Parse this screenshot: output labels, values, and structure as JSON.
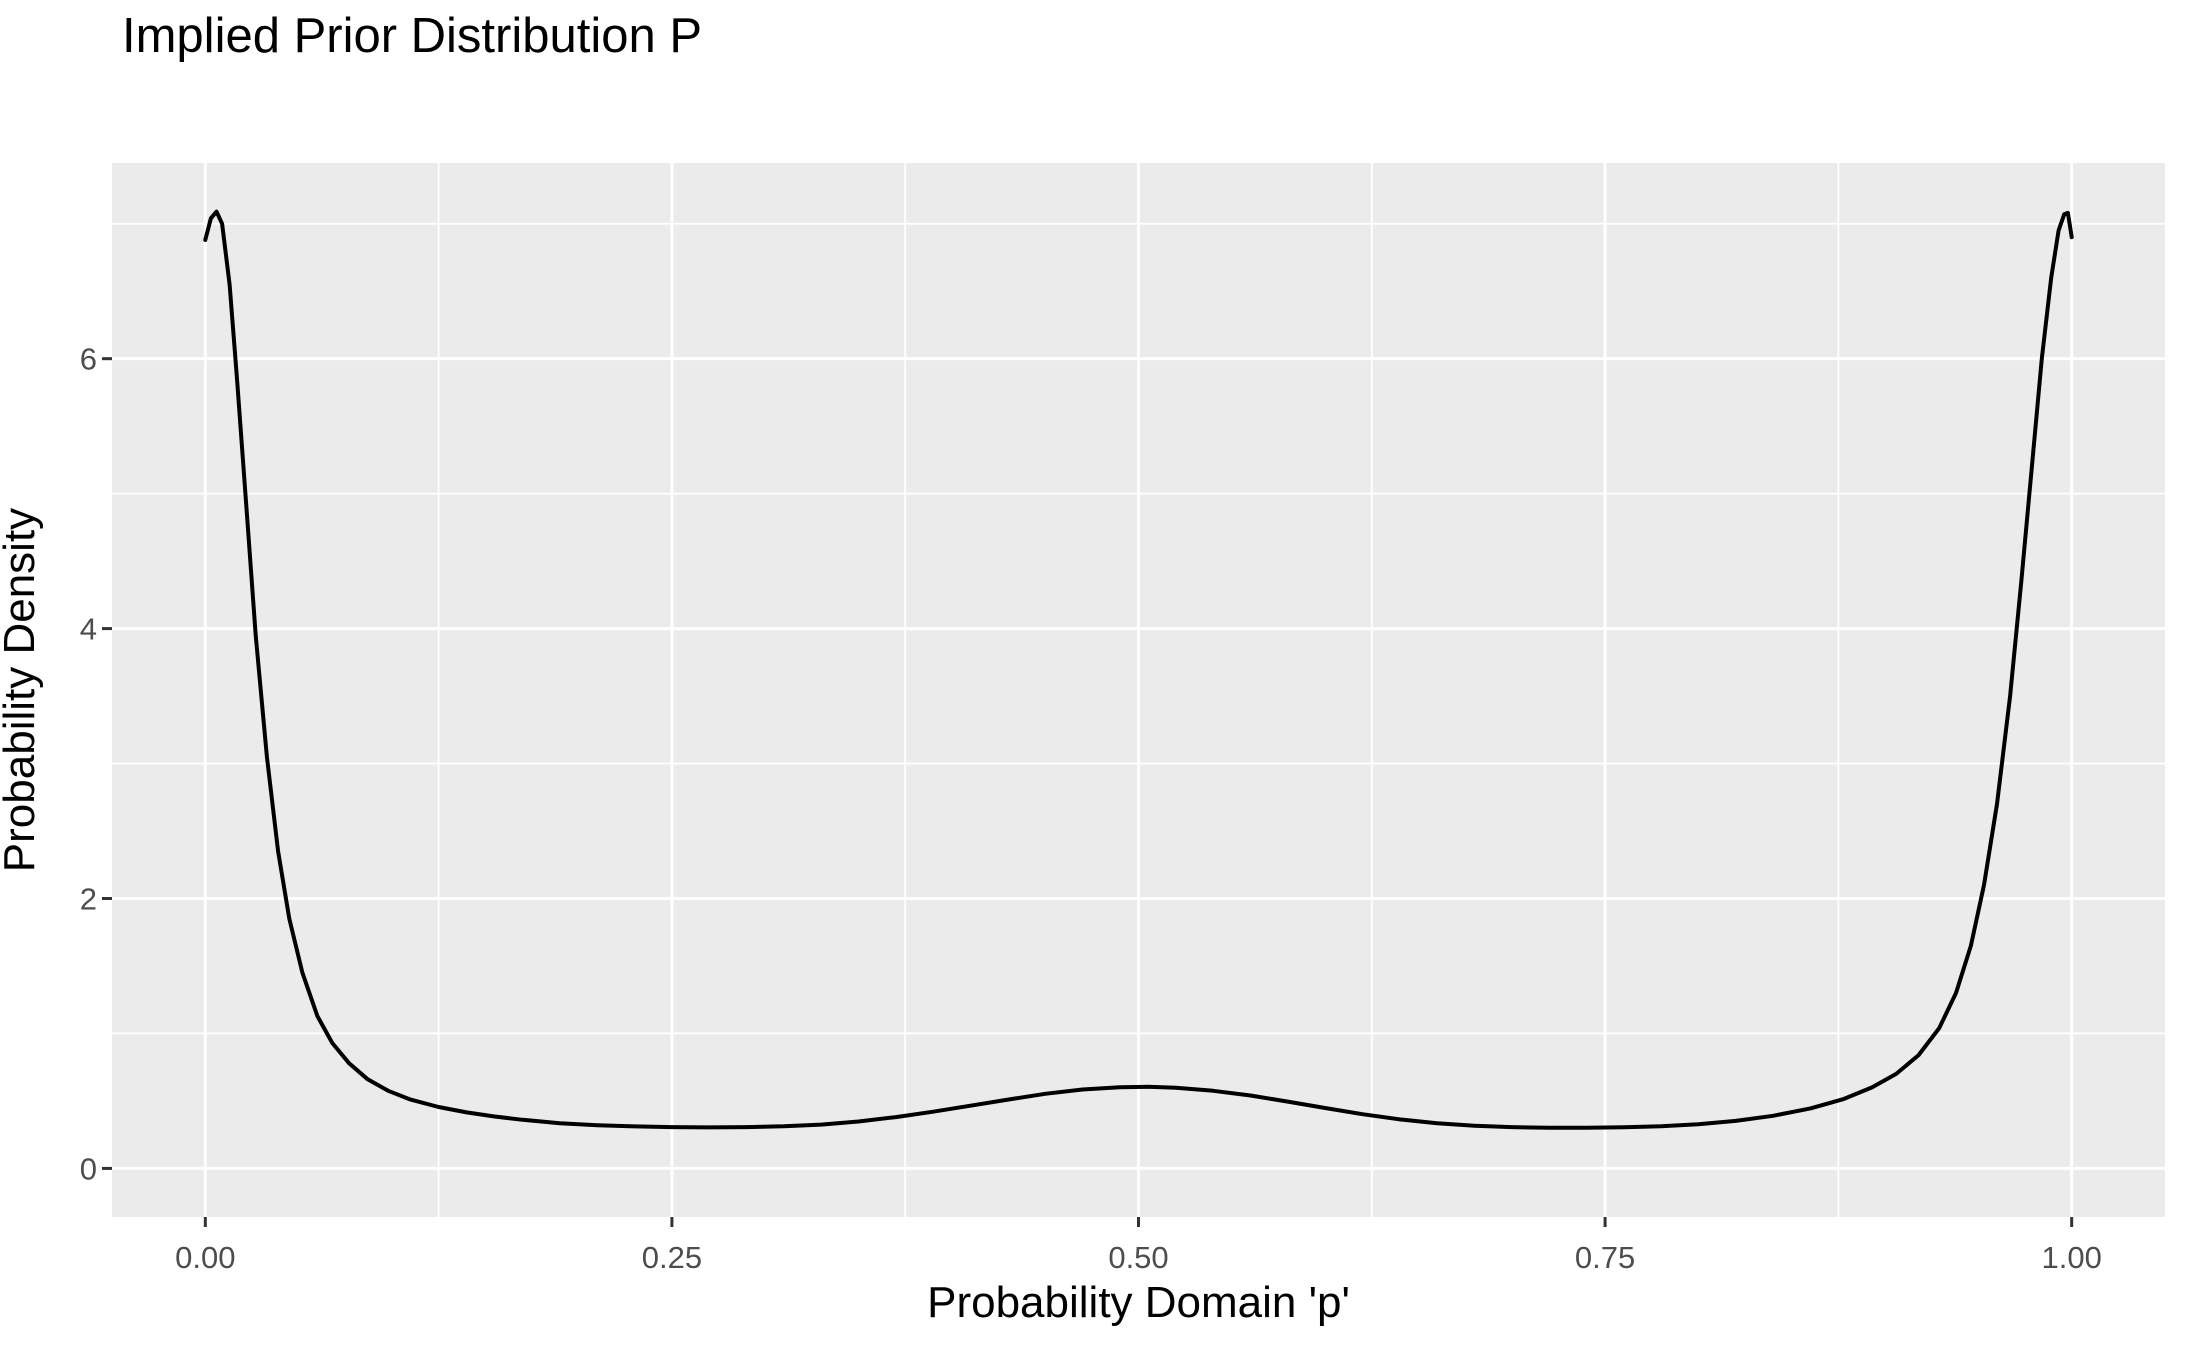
{
  "chart_data": {
    "type": "line",
    "title": "Implied Prior Distribution P",
    "xlabel": "Probability Domain 'p'",
    "ylabel": "Probability Density",
    "legend": "none",
    "grid": "on",
    "panel_color": "#EBEBEB",
    "grid_color": "#FFFFFF",
    "line_color": "#000000",
    "tick_text_color": "#4D4D4D",
    "tick_mark_color": "#333333",
    "xlim": [
      -0.05,
      1.05
    ],
    "ylim": [
      -0.36,
      7.45
    ],
    "x_ticks": [
      0,
      0.25,
      0.5,
      0.75,
      1.0
    ],
    "x_tick_labels": [
      "0.00",
      "0.25",
      "0.50",
      "0.75",
      "1.00"
    ],
    "x_minor_ticks": [
      0.125,
      0.375,
      0.625,
      0.875
    ],
    "y_ticks": [
      0,
      2,
      4,
      6
    ],
    "y_tick_labels": [
      "0",
      "2",
      "4",
      "6"
    ],
    "y_minor_ticks": [
      1,
      3,
      5,
      7
    ],
    "series": [
      {
        "name": "density",
        "points": [
          [
            0.0,
            6.88
          ],
          [
            0.003,
            7.04
          ],
          [
            0.006,
            7.09
          ],
          [
            0.009,
            7.0
          ],
          [
            0.013,
            6.55
          ],
          [
            0.017,
            5.85
          ],
          [
            0.022,
            4.9
          ],
          [
            0.027,
            3.95
          ],
          [
            0.033,
            3.05
          ],
          [
            0.039,
            2.35
          ],
          [
            0.045,
            1.85
          ],
          [
            0.052,
            1.45
          ],
          [
            0.06,
            1.13
          ],
          [
            0.068,
            0.93
          ],
          [
            0.077,
            0.78
          ],
          [
            0.087,
            0.66
          ],
          [
            0.098,
            0.575
          ],
          [
            0.11,
            0.51
          ],
          [
            0.125,
            0.455
          ],
          [
            0.14,
            0.415
          ],
          [
            0.155,
            0.385
          ],
          [
            0.17,
            0.36
          ],
          [
            0.19,
            0.335
          ],
          [
            0.21,
            0.32
          ],
          [
            0.23,
            0.311
          ],
          [
            0.25,
            0.306
          ],
          [
            0.27,
            0.304
          ],
          [
            0.29,
            0.306
          ],
          [
            0.31,
            0.312
          ],
          [
            0.33,
            0.325
          ],
          [
            0.35,
            0.348
          ],
          [
            0.37,
            0.38
          ],
          [
            0.39,
            0.42
          ],
          [
            0.41,
            0.465
          ],
          [
            0.43,
            0.51
          ],
          [
            0.45,
            0.553
          ],
          [
            0.47,
            0.585
          ],
          [
            0.49,
            0.602
          ],
          [
            0.505,
            0.605
          ],
          [
            0.52,
            0.598
          ],
          [
            0.54,
            0.575
          ],
          [
            0.56,
            0.54
          ],
          [
            0.58,
            0.495
          ],
          [
            0.6,
            0.448
          ],
          [
            0.62,
            0.402
          ],
          [
            0.64,
            0.363
          ],
          [
            0.66,
            0.335
          ],
          [
            0.68,
            0.316
          ],
          [
            0.7,
            0.306
          ],
          [
            0.72,
            0.301
          ],
          [
            0.74,
            0.301
          ],
          [
            0.76,
            0.305
          ],
          [
            0.78,
            0.313
          ],
          [
            0.8,
            0.328
          ],
          [
            0.82,
            0.352
          ],
          [
            0.84,
            0.39
          ],
          [
            0.86,
            0.445
          ],
          [
            0.878,
            0.515
          ],
          [
            0.893,
            0.6
          ],
          [
            0.906,
            0.7
          ],
          [
            0.918,
            0.84
          ],
          [
            0.929,
            1.04
          ],
          [
            0.938,
            1.3
          ],
          [
            0.946,
            1.65
          ],
          [
            0.953,
            2.1
          ],
          [
            0.96,
            2.7
          ],
          [
            0.967,
            3.5
          ],
          [
            0.973,
            4.35
          ],
          [
            0.979,
            5.25
          ],
          [
            0.984,
            6.0
          ],
          [
            0.989,
            6.6
          ],
          [
            0.993,
            6.95
          ],
          [
            0.996,
            7.07
          ],
          [
            0.998,
            7.08
          ],
          [
            1.0,
            6.9
          ]
        ]
      }
    ]
  }
}
